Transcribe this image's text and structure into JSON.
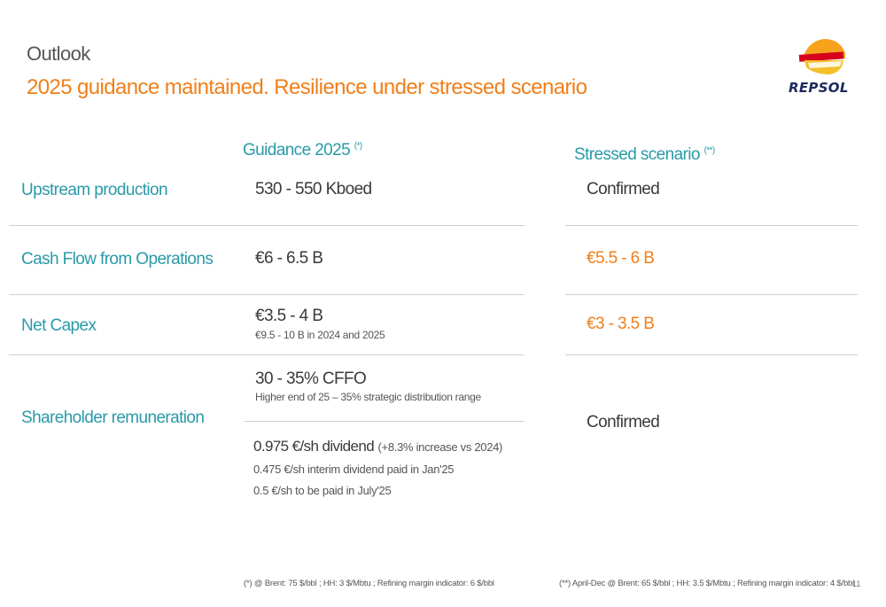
{
  "header": {
    "section": "Outlook",
    "title": "2025 guidance maintained. Resilience under stressed scenario"
  },
  "logo": {
    "text": "REPSOL"
  },
  "columns": {
    "guidance": {
      "label": "Guidance 2025",
      "note_mark": "(*)"
    },
    "stressed": {
      "label": "Stressed scenario",
      "note_mark": "(**)"
    }
  },
  "rows": {
    "upstream": {
      "label": "Upstream production",
      "guidance": "530 - 550 Kboed",
      "stressed": "Confirmed"
    },
    "cfo": {
      "label": "Cash Flow from Operations",
      "guidance": "€6 - 6.5 B",
      "stressed": "€5.5 - 6 B"
    },
    "capex": {
      "label": "Net Capex",
      "guidance": "€3.5 - 4 B",
      "guidance_sub": "€9.5 - 10 B in 2024 and 2025",
      "stressed": "€3 - 3.5 B"
    },
    "remuneration": {
      "label": "Shareholder remuneration",
      "guidance": "30 - 35% CFFO",
      "guidance_sub": "Higher end of 25 – 35% strategic distribution range",
      "dividend": "0.975 €/sh dividend",
      "dividend_note": "(+8.3% increase vs 2024)",
      "interim": "0.475 €/sh interim dividend paid in Jan'25",
      "july": "0.5 €/sh to be paid in July'25",
      "stressed": "Confirmed"
    }
  },
  "footnotes": {
    "guidance": "(*) @ Brent: 75 $/bbl ; HH: 3 $/Mbtu ; Refining margin indicator: 6 $/bbl",
    "stressed": "(**) April-Dec @ Brent: 65 $/bbl ; HH: 3.5 $/Mbtu ; Refining margin indicator: 4 $/bbl"
  },
  "page_number": "11",
  "colors": {
    "teal": "#2a9aa8",
    "orange": "#f07f1a",
    "logo_red": "#d6001c",
    "logo_orange": "#f7a21b",
    "logo_navy": "#1b2a5c"
  }
}
